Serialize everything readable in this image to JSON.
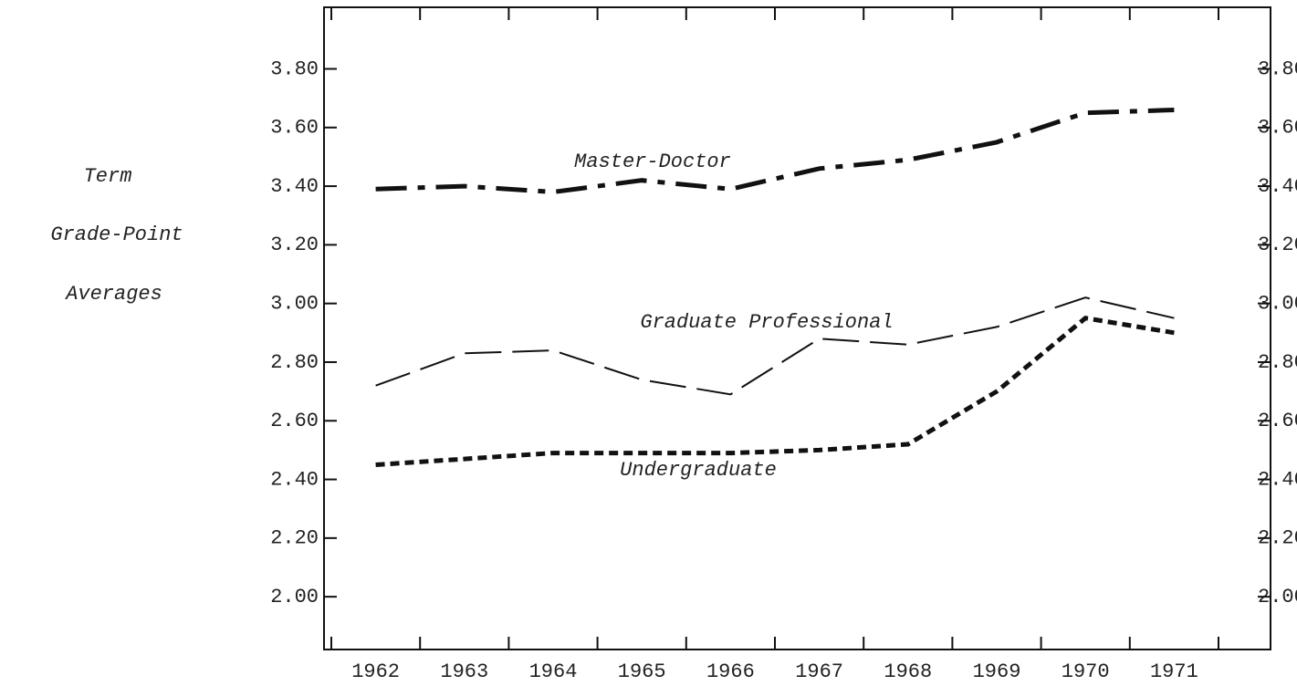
{
  "chart_data": {
    "type": "line",
    "ylabel_lines": [
      "Term",
      "Grade-Point",
      "Averages"
    ],
    "categories": [
      "1962",
      "1963",
      "1964",
      "1965",
      "1966",
      "1967",
      "1968",
      "1969",
      "1970",
      "1971"
    ],
    "series": [
      {
        "name": "Master-Doctor",
        "color": "#111111",
        "linestyle": "dashdot",
        "values": [
          3.39,
          3.4,
          3.38,
          3.42,
          3.39,
          3.46,
          3.49,
          3.55,
          3.65,
          3.66
        ]
      },
      {
        "name": "Graduate Professional",
        "color": "#111111",
        "linestyle": "longdash",
        "values": [
          2.72,
          2.83,
          2.84,
          2.74,
          2.69,
          2.88,
          2.86,
          2.92,
          3.02,
          2.95
        ]
      },
      {
        "name": "Undergraduate",
        "color": "#111111",
        "linestyle": "shortdash",
        "values": [
          2.45,
          2.47,
          2.49,
          2.49,
          2.49,
          2.5,
          2.52,
          2.7,
          2.95,
          2.9
        ]
      }
    ],
    "ylim": [
      1.82,
      4.01
    ],
    "yticks": [
      {
        "value": 2.0,
        "label": "2.00"
      },
      {
        "value": 2.2,
        "label": "2.20"
      },
      {
        "value": 2.4,
        "label": "2.40"
      },
      {
        "value": 2.6,
        "label": "2.60"
      },
      {
        "value": 2.8,
        "label": "2.80"
      },
      {
        "value": 3.0,
        "label": "3.00"
      },
      {
        "value": 3.2,
        "label": "3.20"
      },
      {
        "value": 3.4,
        "label": "3.40"
      },
      {
        "value": 3.6,
        "label": "3.60"
      },
      {
        "value": 3.8,
        "label": "3.80"
      }
    ],
    "right_axis": true,
    "grid": false
  }
}
